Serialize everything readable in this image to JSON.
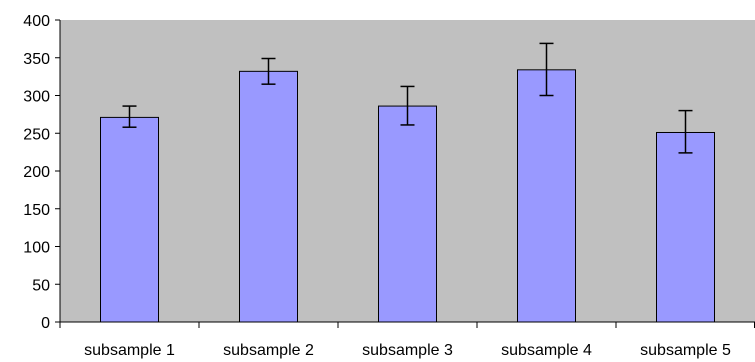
{
  "chart_data": {
    "type": "bar",
    "categories": [
      "subsample 1",
      "subsample 2",
      "subsample 3",
      "subsample 4",
      "subsample 5"
    ],
    "values": [
      271,
      332,
      286,
      334,
      251
    ],
    "error_bars": {
      "upper": [
        286,
        349,
        312,
        369,
        280
      ],
      "lower": [
        258,
        315,
        261,
        300,
        224
      ]
    },
    "ylim": [
      0,
      400
    ],
    "yticks": [
      0,
      50,
      100,
      150,
      200,
      250,
      300,
      350,
      400
    ],
    "grid": false,
    "legend": "none",
    "title": "",
    "xlabel": "",
    "ylabel": ""
  },
  "colors": {
    "plot_background": "#c0c0c0",
    "bar_fill": "#9999ff",
    "bar_stroke": "#000000",
    "axis": "#000000"
  }
}
